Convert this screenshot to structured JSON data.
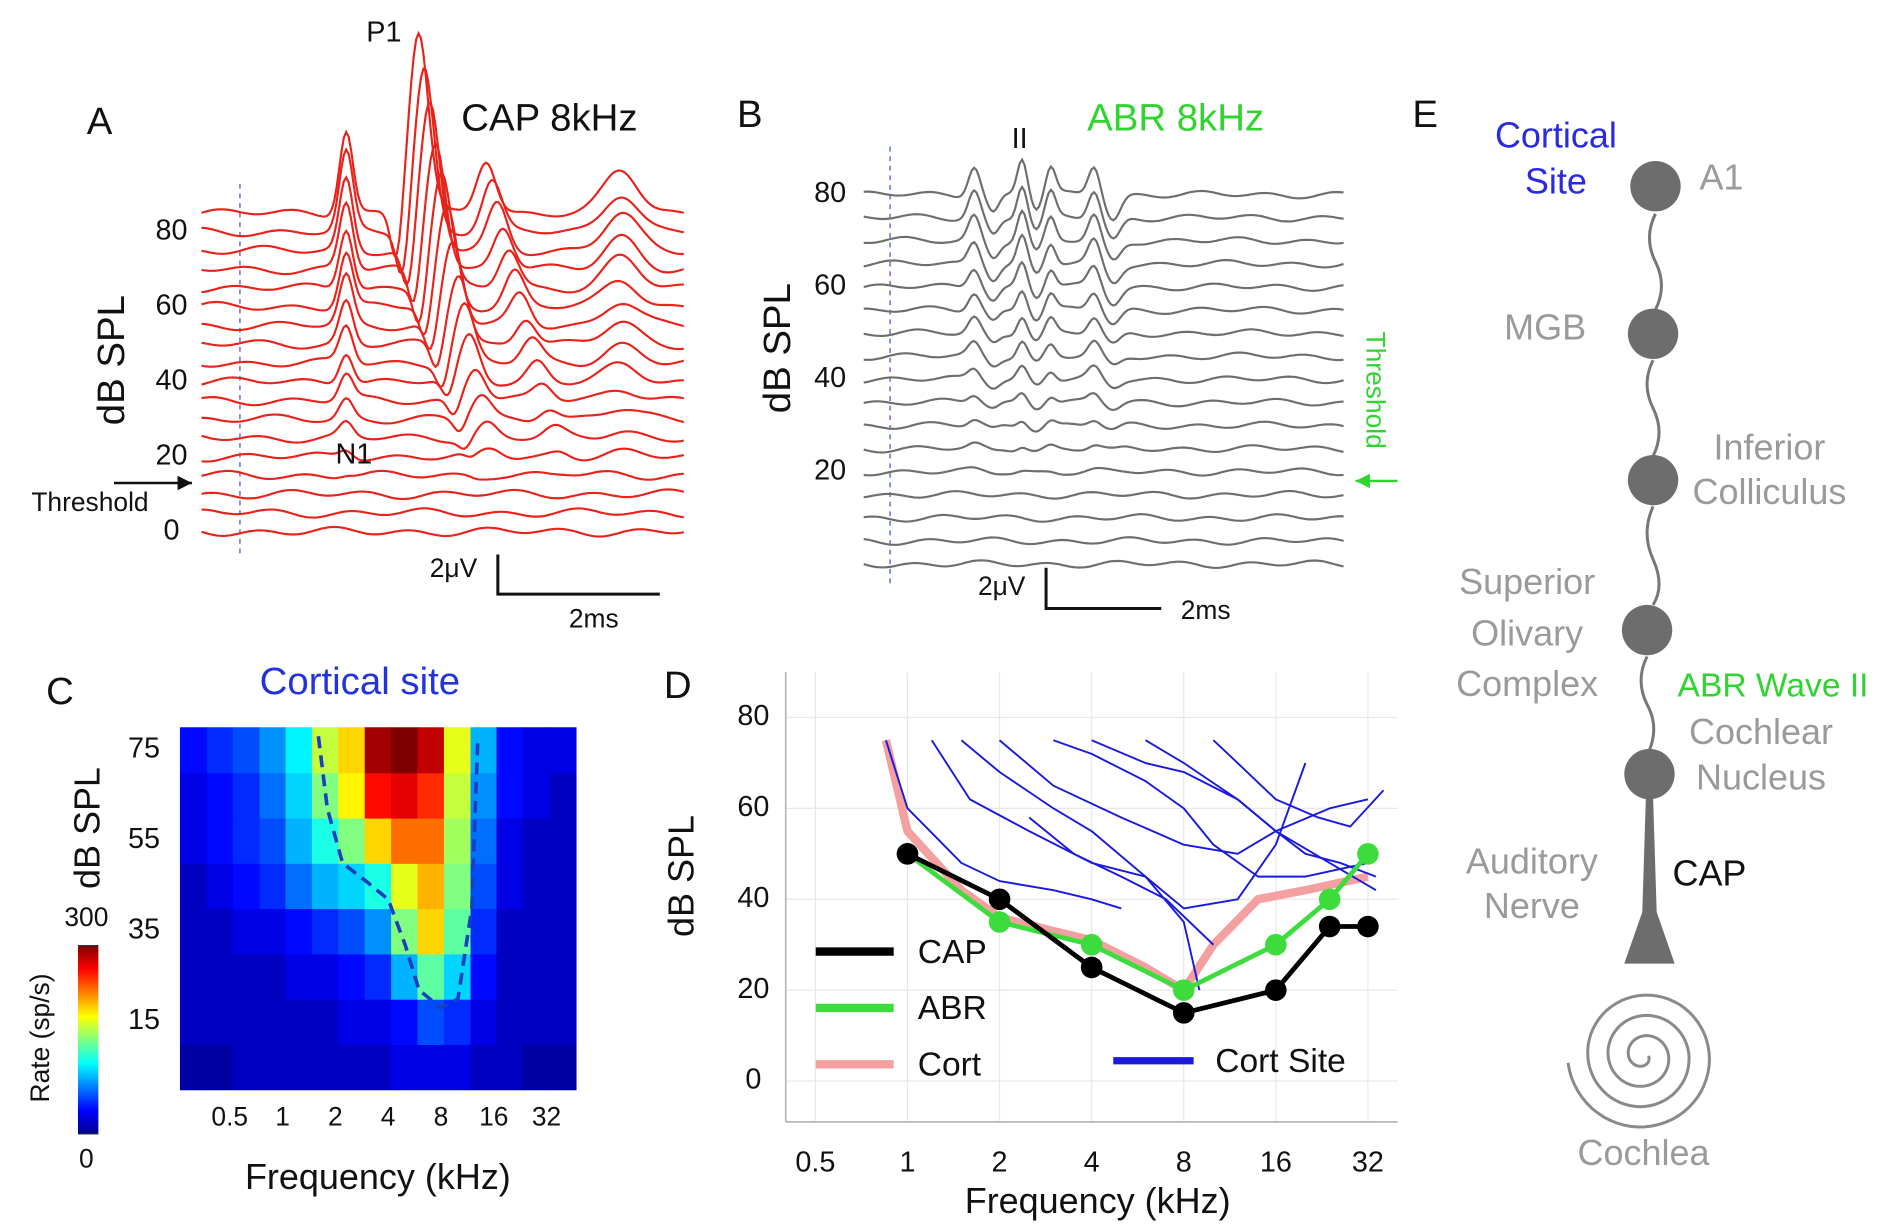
{
  "chart_data": [
    {
      "type": "waveform",
      "panel_label": "A",
      "title": "CAP 8kHz",
      "ylabel": "dB SPL",
      "ylim": [
        0,
        80
      ],
      "yticks": [
        0,
        20,
        40,
        60,
        80
      ],
      "levels": [
        0,
        5,
        10,
        15,
        20,
        25,
        30,
        35,
        40,
        45,
        50,
        55,
        60,
        65,
        70,
        75,
        80,
        85
      ],
      "threshold": 13,
      "threshold_label": "Threshold",
      "peak_labels": [
        "P1",
        "N1"
      ],
      "scale_bar": {
        "y_label": "2μV",
        "x_label": "2ms"
      },
      "color": "#e8231b"
    },
    {
      "type": "waveform",
      "panel_label": "B",
      "title": "ABR 8kHz",
      "ylabel": "dB SPL",
      "ylim": [
        0,
        80
      ],
      "yticks": [
        20,
        40,
        60,
        80
      ],
      "levels": [
        0,
        5,
        10,
        15,
        20,
        25,
        30,
        35,
        40,
        45,
        50,
        55,
        60,
        65,
        70,
        75,
        80
      ],
      "threshold": 18,
      "threshold_label": "Threshold",
      "peak_labels": [
        "II"
      ],
      "scale_bar": {
        "y_label": "2μV",
        "x_label": "2ms"
      },
      "color": "#6e6e6e",
      "title_color": "#2fd42f"
    },
    {
      "type": "heatmap",
      "panel_label": "C",
      "title": "Cortical site",
      "title_color": "#2233dd",
      "xlabel": "Frequency (kHz)",
      "ylabel": "dB SPL",
      "colorbar_label": "Rate (sp/s)",
      "xlim": [
        0.26,
        47
      ],
      "ylim": [
        0,
        80
      ],
      "xticks": [
        0.5,
        1,
        2,
        4,
        8,
        16,
        32
      ],
      "yticks": [
        15,
        35,
        55,
        75
      ],
      "clim": [
        0,
        300
      ],
      "cticks": [
        0,
        300
      ],
      "x_edges": [
        0.26,
        0.37,
        0.52,
        0.74,
        1.04,
        1.47,
        2.08,
        2.94,
        4.16,
        5.88,
        8.32,
        11.8,
        16.6,
        23.5,
        33.3,
        47
      ],
      "y_edges": [
        0,
        10,
        20,
        30,
        40,
        50,
        60,
        70,
        80
      ],
      "matrix": [
        [
          10,
          10,
          20,
          20,
          20,
          20,
          20,
          20,
          30,
          30,
          30,
          20,
          20,
          10,
          10
        ],
        [
          20,
          20,
          20,
          20,
          20,
          20,
          30,
          30,
          40,
          60,
          50,
          30,
          20,
          20,
          20
        ],
        [
          20,
          20,
          20,
          20,
          30,
          30,
          40,
          50,
          90,
          140,
          100,
          40,
          20,
          20,
          20
        ],
        [
          20,
          20,
          30,
          30,
          40,
          50,
          60,
          80,
          150,
          200,
          140,
          50,
          20,
          20,
          20
        ],
        [
          20,
          30,
          40,
          50,
          70,
          90,
          100,
          120,
          180,
          210,
          150,
          60,
          30,
          20,
          20
        ],
        [
          30,
          40,
          50,
          60,
          90,
          120,
          150,
          200,
          230,
          230,
          160,
          70,
          30,
          20,
          20
        ],
        [
          30,
          40,
          50,
          70,
          100,
          150,
          190,
          260,
          270,
          250,
          170,
          80,
          40,
          30,
          20
        ],
        [
          40,
          50,
          60,
          80,
          110,
          170,
          200,
          290,
          300,
          280,
          180,
          90,
          40,
          30,
          30
        ]
      ],
      "contour": {
        "x": [
          1.6,
          1.8,
          2.2,
          3,
          4,
          5,
          6,
          8,
          10,
          12,
          12.5,
          13
        ],
        "values": [
          78,
          62,
          50,
          46,
          42,
          32,
          22,
          18,
          20,
          40,
          60,
          78
        ],
        "color": "#1a3fbf"
      }
    },
    {
      "type": "line",
      "panel_label": "D",
      "xlabel": "Frequency (kHz)",
      "ylabel": "dB SPL",
      "log_x": true,
      "grid": true,
      "xlim": [
        0.4,
        40
      ],
      "ylim": [
        -9,
        90
      ],
      "xticks": [
        0.5,
        1,
        2,
        4,
        8,
        16,
        32
      ],
      "yticks": [
        0,
        20,
        40,
        60,
        80
      ],
      "series": [
        {
          "name": "Cort",
          "color": "#f4a0a0",
          "markers": false,
          "x": [
            0.85,
            1,
            1.5,
            2,
            3,
            4,
            6,
            8,
            10,
            14,
            20,
            32
          ],
          "values": [
            75,
            55,
            42,
            36,
            33,
            31,
            25,
            20,
            30,
            40,
            42,
            45
          ]
        },
        {
          "name": "ABR",
          "color": "#3ddc3d",
          "markers": true,
          "x": [
            1,
            2,
            4,
            8,
            16,
            24,
            32
          ],
          "values": [
            50,
            35,
            30,
            20,
            30,
            40,
            50
          ]
        },
        {
          "name": "CAP",
          "color": "#000000",
          "markers": true,
          "x": [
            1,
            2,
            4,
            8,
            16,
            24,
            32
          ],
          "values": [
            50,
            40,
            25,
            15,
            20,
            34,
            34
          ]
        }
      ],
      "site_series": {
        "name": "Cort Site",
        "color": "#1a1adb",
        "curves": [
          {
            "x": [
              0.85,
              1,
              1.5,
              2,
              3,
              4,
              5
            ],
            "values": [
              75,
              60,
              48,
              44,
              42,
              40,
              38
            ]
          },
          {
            "x": [
              1.2,
              1.6,
              2.5,
              4,
              6,
              8,
              9
            ],
            "values": [
              75,
              62,
              55,
              48,
              45,
              35,
              20
            ]
          },
          {
            "x": [
              1.5,
              2,
              3,
              4,
              6,
              8,
              12,
              16,
              20
            ],
            "values": [
              75,
              68,
              60,
              55,
              45,
              38,
              40,
              52,
              70
            ]
          },
          {
            "x": [
              2,
              3,
              5,
              8,
              12,
              16,
              24,
              32
            ],
            "values": [
              75,
              65,
              58,
              52,
              50,
              55,
              60,
              62
            ]
          },
          {
            "x": [
              3,
              4,
              6,
              8,
              10,
              14,
              20,
              32
            ],
            "values": [
              75,
              72,
              66,
              60,
              52,
              45,
              45,
              48
            ]
          },
          {
            "x": [
              4,
              6,
              8,
              12,
              16,
              24,
              34
            ],
            "values": [
              75,
              70,
              68,
              62,
              55,
              48,
              42
            ]
          },
          {
            "x": [
              6,
              8,
              12,
              16,
              20,
              26,
              34
            ],
            "values": [
              75,
              70,
              62,
              55,
              50,
              48,
              45
            ]
          },
          {
            "x": [
              10,
              12,
              16,
              22,
              28,
              36
            ],
            "values": [
              75,
              70,
              62,
              58,
              56,
              64
            ]
          },
          {
            "x": [
              2.5,
              3.5,
              5,
              7,
              10
            ],
            "values": [
              58,
              50,
              45,
              40,
              30
            ]
          }
        ]
      }
    }
  ],
  "diagram": {
    "panel_label": "E",
    "cortical_site": [
      "Cortical",
      "Site"
    ],
    "nodes": [
      {
        "label": [
          "A1"
        ]
      },
      {
        "label": [
          "MGB"
        ]
      },
      {
        "label": [
          "Inferior",
          "Colliculus"
        ]
      },
      {
        "label": [
          "Superior",
          "Olivary",
          "Complex"
        ]
      },
      {
        "label": [
          "Cochlear",
          "Nucleus"
        ]
      }
    ],
    "nerve": [
      "Auditory",
      "Nerve"
    ],
    "cap": "CAP",
    "abr": "ABR Wave II",
    "cochlea": "Cochlea"
  }
}
